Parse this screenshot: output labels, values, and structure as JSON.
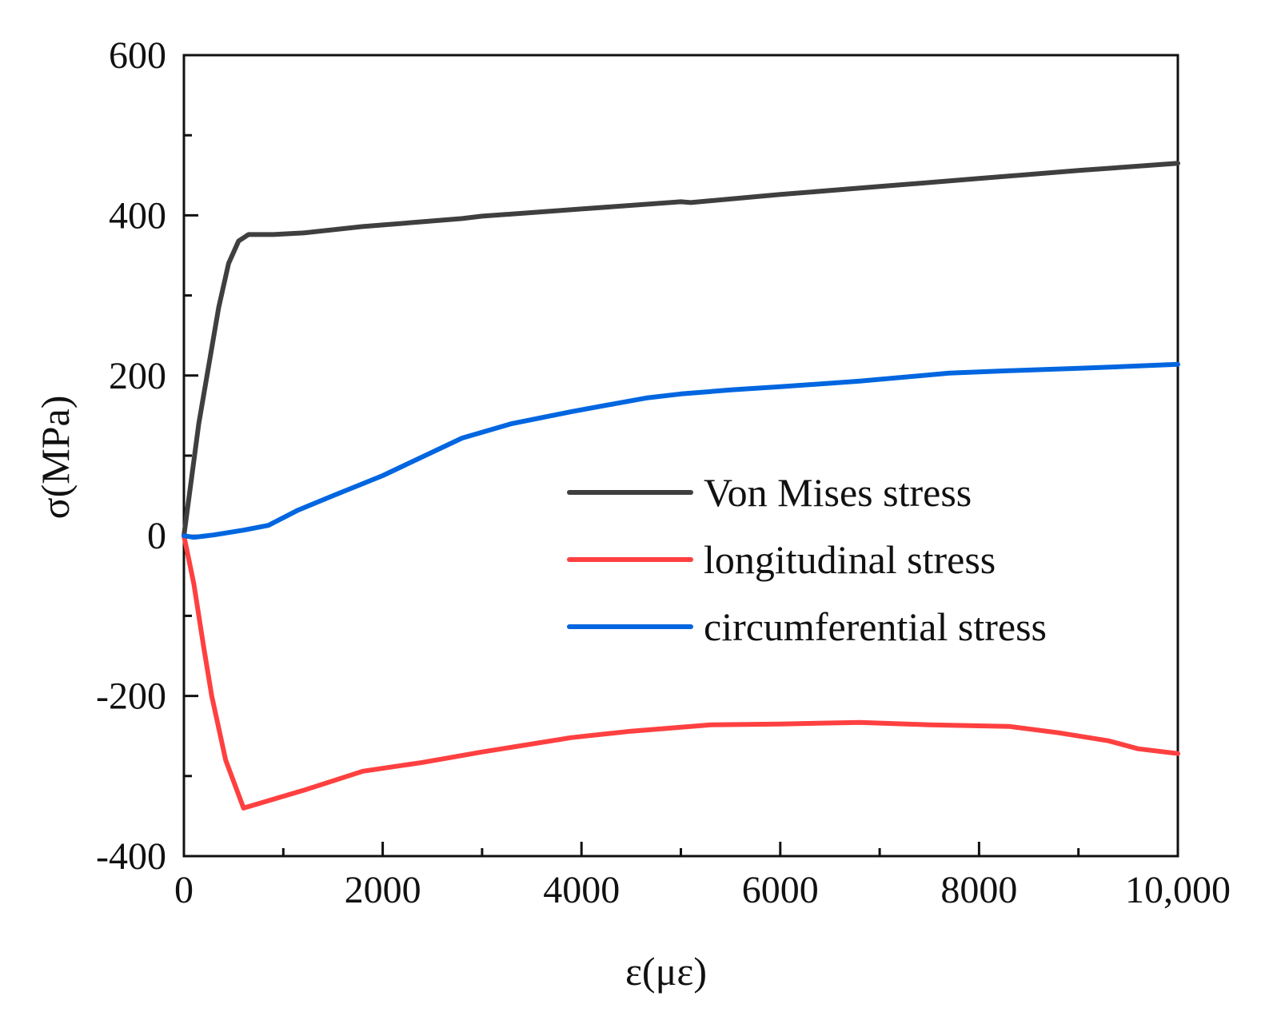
{
  "chart_data": {
    "type": "line",
    "title": "",
    "xlabel": "ε(με)",
    "ylabel": "σ(MPa)",
    "xlim": [
      0,
      10000
    ],
    "ylim": [
      -400,
      600
    ],
    "x_ticks": [
      0,
      2000,
      4000,
      6000,
      8000,
      10000
    ],
    "x_tick_labels": [
      "0",
      "2000",
      "4000",
      "6000",
      "8000",
      "10,000"
    ],
    "y_ticks": [
      -400,
      -200,
      0,
      200,
      400,
      600
    ],
    "y_tick_labels": [
      "-400",
      "-200",
      "0",
      "200",
      "400",
      "600"
    ],
    "grid": false,
    "legend_position": "center-right",
    "series": [
      {
        "name": "Von Mises stress",
        "color": "#3f3f3f",
        "x": [
          0,
          150,
          350,
          450,
          550,
          650,
          900,
          1200,
          1800,
          2400,
          2800,
          3000,
          4000,
          5000,
          5100,
          6000,
          7000,
          8000,
          9000,
          10000
        ],
        "y": [
          0,
          140,
          285,
          340,
          368,
          376,
          376,
          378,
          386,
          392,
          396,
          399,
          408,
          417,
          416,
          426,
          436,
          446,
          456,
          465
        ]
      },
      {
        "name": "longitudinal stress",
        "color": "#ff4040",
        "x": [
          0,
          100,
          200,
          280,
          420,
          600,
          1200,
          1800,
          2400,
          3000,
          3900,
          4500,
          5300,
          6000,
          6800,
          7500,
          8300,
          8800,
          9300,
          9600,
          10000
        ],
        "y": [
          0,
          -60,
          -140,
          -200,
          -280,
          -340,
          -318,
          -294,
          -283,
          -270,
          -252,
          -244,
          -236,
          -235,
          -233,
          -236,
          -238,
          -246,
          -256,
          -266,
          -272
        ]
      },
      {
        "name": "circumferential stress",
        "color": "#0066e0",
        "x": [
          0,
          100,
          300,
          450,
          600,
          850,
          1150,
          1500,
          2000,
          2800,
          3300,
          3900,
          4650,
          5000,
          5500,
          6000,
          6800,
          7700,
          8300,
          9000,
          10000
        ],
        "y": [
          0,
          -2,
          1,
          4,
          7,
          13,
          32,
          50,
          75,
          122,
          140,
          155,
          172,
          177,
          182,
          186,
          193,
          203,
          206,
          209,
          214
        ]
      }
    ]
  }
}
